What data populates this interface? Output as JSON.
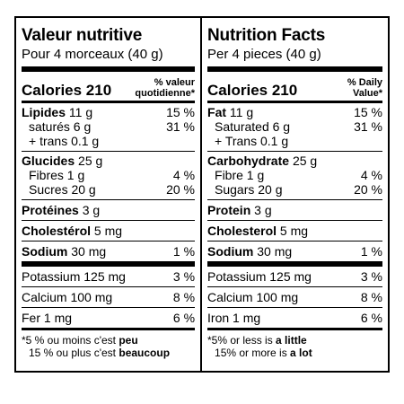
{
  "fr": {
    "title": "Valeur nutritive",
    "serving": "Pour 4 morceaux (40 g)",
    "calories_label": "Calories 210",
    "dv_line1": "% valeur",
    "dv_line2": "quotidienne*",
    "fat_name": "Lipides",
    "fat_amt": "11 g",
    "fat_pct": "15 %",
    "sat": "saturés 6 g",
    "sat_pct": "31 %",
    "trans": "+ trans 0.1 g",
    "carb_name": "Glucides",
    "carb_amt": "25 g",
    "fibre": "Fibres 1 g",
    "fibre_pct": "4 %",
    "sugar": "Sucres 20 g",
    "sugar_pct": "20 %",
    "protein_name": "Protéines",
    "protein_amt": "3 g",
    "chol_name": "Cholestérol",
    "chol_amt": "5 mg",
    "sodium_name": "Sodium",
    "sodium_amt": "30 mg",
    "sodium_pct": "1 %",
    "potassium": "Potassium 125 mg",
    "potassium_pct": "3 %",
    "calcium": "Calcium 100 mg",
    "calcium_pct": "8 %",
    "iron": "Fer 1 mg",
    "iron_pct": "6 %",
    "foot1_a": "*5 % ou moins c'est ",
    "foot1_b": "peu",
    "foot2_a": "15 % ou plus c'est ",
    "foot2_b": "beaucoup"
  },
  "en": {
    "title": "Nutrition Facts",
    "serving": "Per 4 pieces (40 g)",
    "calories_label": "Calories 210",
    "dv_line1": "% Daily",
    "dv_line2": "Value*",
    "fat_name": "Fat",
    "fat_amt": "11 g",
    "fat_pct": "15 %",
    "sat": "Saturated 6 g",
    "sat_pct": "31 %",
    "trans": "+ Trans 0.1 g",
    "carb_name": "Carbohydrate",
    "carb_amt": "25 g",
    "fibre": "Fibre 1 g",
    "fibre_pct": "4 %",
    "sugar": "Sugars 20 g",
    "sugar_pct": "20 %",
    "protein_name": "Protein",
    "protein_amt": "3 g",
    "chol_name": "Cholesterol",
    "chol_amt": "5 mg",
    "sodium_name": "Sodium",
    "sodium_amt": "30 mg",
    "sodium_pct": "1 %",
    "potassium": "Potassium 125 mg",
    "potassium_pct": "3 %",
    "calcium": "Calcium 100 mg",
    "calcium_pct": "8 %",
    "iron": "Iron 1 mg",
    "iron_pct": "6 %",
    "foot1_a": "*5% or less is ",
    "foot1_b": "a little",
    "foot2_a": "15% or more is ",
    "foot2_b": "a lot"
  }
}
